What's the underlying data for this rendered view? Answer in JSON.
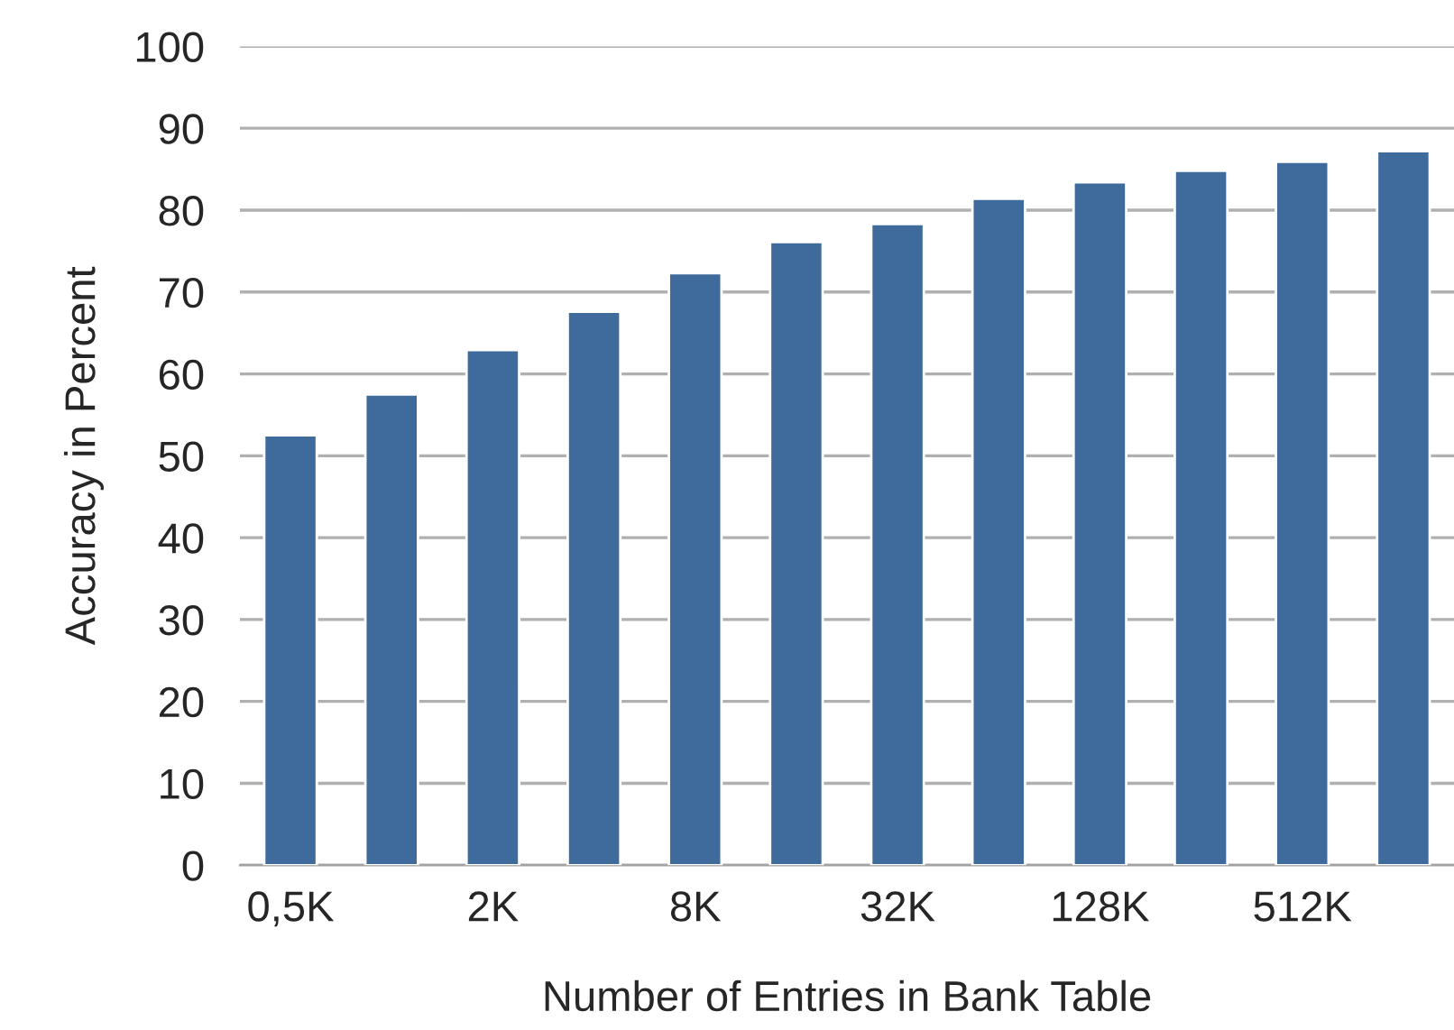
{
  "chart_data": {
    "type": "bar",
    "xlabel": "Number of Entries in Bank Table",
    "ylabel": "Accuracy in Percent",
    "categories": [
      "0,5K",
      null,
      "2K",
      null,
      "8K",
      null,
      "32K",
      null,
      "128K",
      null,
      "512K",
      null
    ],
    "values": [
      52.5,
      57.5,
      62.9,
      67.6,
      72.3,
      76.1,
      78.3,
      81.4,
      83.4,
      84.8,
      85.9,
      87.2
    ],
    "color": "#3e6b9c",
    "ylim": [
      0,
      100
    ],
    "yticks": [
      0,
      10,
      20,
      30,
      40,
      50,
      60,
      70,
      80,
      90,
      100
    ],
    "grid": "y"
  }
}
